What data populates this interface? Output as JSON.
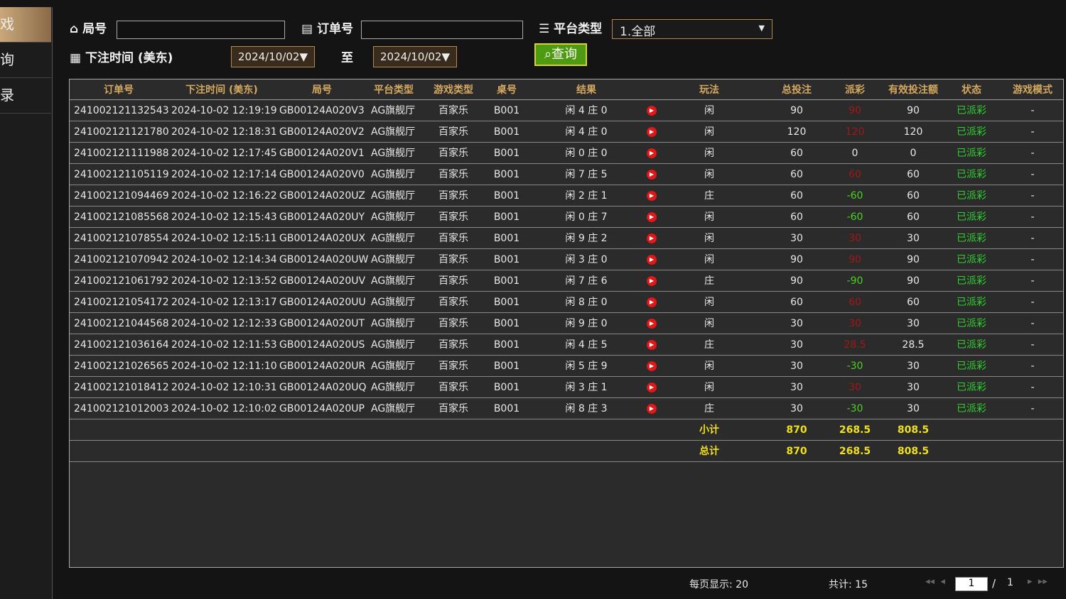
{
  "sidebar": {
    "items": [
      "戏",
      "询",
      "录"
    ]
  },
  "filters": {
    "round_label": "局号",
    "order_label": "订单号",
    "platform_label": "平台类型",
    "platform_value": "1.全部",
    "time_label": "下注时间 (美东)",
    "date_from": "2024/10/02▼",
    "to_label": "至",
    "date_to": "2024/10/02▼",
    "search_button": "查询"
  },
  "table": {
    "headers": [
      "订单号",
      "下注时间 (美东)",
      "局号",
      "平台类型",
      "游戏类型",
      "桌号",
      "结果",
      "玩法",
      "总投注",
      "派彩",
      "有效投注额",
      "状态",
      "游戏模式"
    ],
    "rows": [
      [
        "241002121132543",
        "2024-10-02 12:19:19",
        "GB00124A020V3",
        "AG旗舰厅",
        "百家乐",
        "B001",
        "闲 4 庄 0",
        "闲",
        90,
        90,
        90,
        "已派彩",
        "-"
      ],
      [
        "241002121121780",
        "2024-10-02 12:18:31",
        "GB00124A020V2",
        "AG旗舰厅",
        "百家乐",
        "B001",
        "闲 4 庄 0",
        "闲",
        120,
        120,
        120,
        "已派彩",
        "-"
      ],
      [
        "241002121111988",
        "2024-10-02 12:17:45",
        "GB00124A020V1",
        "AG旗舰厅",
        "百家乐",
        "B001",
        "闲 0 庄 0",
        "闲",
        60,
        0,
        0,
        "已派彩",
        "-"
      ],
      [
        "241002121105119",
        "2024-10-02 12:17:14",
        "GB00124A020V0",
        "AG旗舰厅",
        "百家乐",
        "B001",
        "闲 7 庄 5",
        "闲",
        60,
        60,
        60,
        "已派彩",
        "-"
      ],
      [
        "241002121094469",
        "2024-10-02 12:16:22",
        "GB00124A020UZ",
        "AG旗舰厅",
        "百家乐",
        "B001",
        "闲 2 庄 1",
        "庄",
        60,
        -60,
        60,
        "已派彩",
        "-"
      ],
      [
        "241002121085568",
        "2024-10-02 12:15:43",
        "GB00124A020UY",
        "AG旗舰厅",
        "百家乐",
        "B001",
        "闲 0 庄 7",
        "闲",
        60,
        -60,
        60,
        "已派彩",
        "-"
      ],
      [
        "241002121078554",
        "2024-10-02 12:15:11",
        "GB00124A020UX",
        "AG旗舰厅",
        "百家乐",
        "B001",
        "闲 9 庄 2",
        "闲",
        30,
        30,
        30,
        "已派彩",
        "-"
      ],
      [
        "241002121070942",
        "2024-10-02 12:14:34",
        "GB00124A020UW",
        "AG旗舰厅",
        "百家乐",
        "B001",
        "闲 3 庄 0",
        "闲",
        90,
        90,
        90,
        "已派彩",
        "-"
      ],
      [
        "241002121061792",
        "2024-10-02 12:13:52",
        "GB00124A020UV",
        "AG旗舰厅",
        "百家乐",
        "B001",
        "闲 7 庄 6",
        "庄",
        90,
        -90,
        90,
        "已派彩",
        "-"
      ],
      [
        "241002121054172",
        "2024-10-02 12:13:17",
        "GB00124A020UU",
        "AG旗舰厅",
        "百家乐",
        "B001",
        "闲 8 庄 0",
        "闲",
        60,
        60,
        60,
        "已派彩",
        "-"
      ],
      [
        "241002121044568",
        "2024-10-02 12:12:33",
        "GB00124A020UT",
        "AG旗舰厅",
        "百家乐",
        "B001",
        "闲 9 庄 0",
        "闲",
        30,
        30,
        30,
        "已派彩",
        "-"
      ],
      [
        "241002121036164",
        "2024-10-02 12:11:53",
        "GB00124A020US",
        "AG旗舰厅",
        "百家乐",
        "B001",
        "闲 4 庄 5",
        "庄",
        30,
        28.5,
        28.5,
        "已派彩",
        "-"
      ],
      [
        "241002121026565",
        "2024-10-02 12:11:10",
        "GB00124A020UR",
        "AG旗舰厅",
        "百家乐",
        "B001",
        "闲 5 庄 9",
        "闲",
        30,
        -30,
        30,
        "已派彩",
        "-"
      ],
      [
        "241002121018412",
        "2024-10-02 12:10:31",
        "GB00124A020UQ",
        "AG旗舰厅",
        "百家乐",
        "B001",
        "闲 3 庄 1",
        "闲",
        30,
        30,
        30,
        "已派彩",
        "-"
      ],
      [
        "241002121012003",
        "2024-10-02 12:10:02",
        "GB00124A020UP",
        "AG旗舰厅",
        "百家乐",
        "B001",
        "闲 8 庄 3",
        "庄",
        30,
        -30,
        30,
        "已派彩",
        "-"
      ]
    ],
    "subtotal": {
      "label": "小计",
      "values": [
        870,
        268.5,
        808.5
      ]
    },
    "total": {
      "label": "总计",
      "values": [
        870,
        268.5,
        808.5
      ]
    }
  },
  "pager": {
    "per_page": "每页显示: 20",
    "count": "共计: 15",
    "page": "1",
    "separator": "/",
    "pages": "1"
  }
}
